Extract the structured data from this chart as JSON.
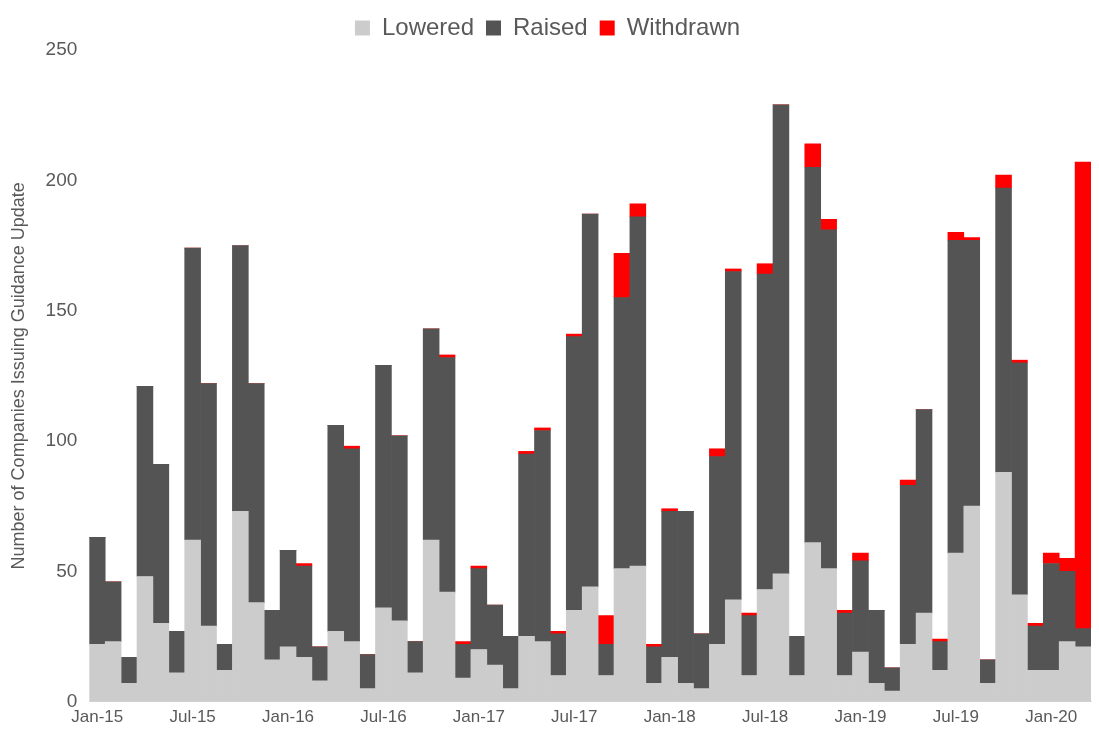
{
  "chart_data": {
    "type": "bar",
    "stacked": true,
    "ylabel": "Number of Companies Issuing Guidance Update",
    "categories": [
      "Jan-15",
      null,
      null,
      null,
      null,
      null,
      "Jul-15",
      null,
      null,
      null,
      null,
      null,
      "Jan-16",
      null,
      null,
      null,
      null,
      null,
      "Jul-16",
      null,
      null,
      null,
      null,
      null,
      "Jan-17",
      null,
      null,
      null,
      null,
      null,
      "Jul-17",
      null,
      null,
      null,
      null,
      null,
      "Jan-18",
      null,
      null,
      null,
      null,
      null,
      "Jul-18",
      null,
      null,
      null,
      null,
      null,
      "Jan-19",
      null,
      null,
      null,
      null,
      null,
      "Jul-19",
      null,
      null,
      null,
      null,
      null,
      "Jan-20",
      null,
      null
    ],
    "series": [
      {
        "name": "Lowered",
        "color": "#cccccc",
        "values": [
          22,
          23,
          7,
          48,
          30,
          11,
          62,
          29,
          12,
          73,
          38,
          16,
          21,
          17,
          8,
          27,
          23,
          5,
          36,
          31,
          11,
          62,
          42,
          9,
          20,
          14,
          5,
          25,
          23,
          10,
          35,
          44,
          10,
          51,
          52,
          7,
          17,
          7,
          5,
          22,
          39,
          10,
          43,
          49,
          10,
          61,
          51,
          10,
          19,
          7,
          4,
          22,
          34,
          12,
          57,
          75,
          7,
          88,
          41,
          12,
          12,
          23,
          21
        ]
      },
      {
        "name": "Raised",
        "color": "#545454",
        "values": [
          41,
          23,
          10,
          73,
          61,
          16,
          112,
          93,
          10,
          102,
          84,
          19,
          37,
          35,
          13,
          79,
          74,
          13,
          93,
          71,
          12,
          81,
          90,
          13,
          31,
          23,
          20,
          70,
          81,
          16,
          105,
          143,
          12,
          104,
          134,
          14,
          56,
          66,
          21,
          72,
          126,
          23,
          121,
          180,
          15,
          144,
          130,
          24,
          35,
          28,
          9,
          61,
          78,
          11,
          120,
          102,
          9,
          109,
          89,
          17,
          41,
          27,
          7
        ]
      },
      {
        "name": "Withdrawn",
        "color": "#ff0000",
        "values": [
          0,
          0,
          0,
          0,
          0,
          0,
          0,
          0,
          0,
          0,
          0,
          0,
          0,
          1,
          0,
          0,
          1,
          0,
          0,
          0,
          0,
          0,
          1,
          1,
          1,
          0,
          0,
          1,
          1,
          1,
          1,
          0,
          11,
          17,
          5,
          1,
          1,
          0,
          0,
          3,
          1,
          1,
          4,
          0,
          0,
          9,
          4,
          1,
          3,
          0,
          0,
          2,
          0,
          1,
          3,
          1,
          0,
          5,
          1,
          1,
          4,
          5,
          179
        ]
      }
    ],
    "ylim": [
      0,
      250
    ],
    "yticks": [
      0,
      50,
      100,
      150,
      200,
      250
    ],
    "grid": false,
    "legend": "top"
  }
}
